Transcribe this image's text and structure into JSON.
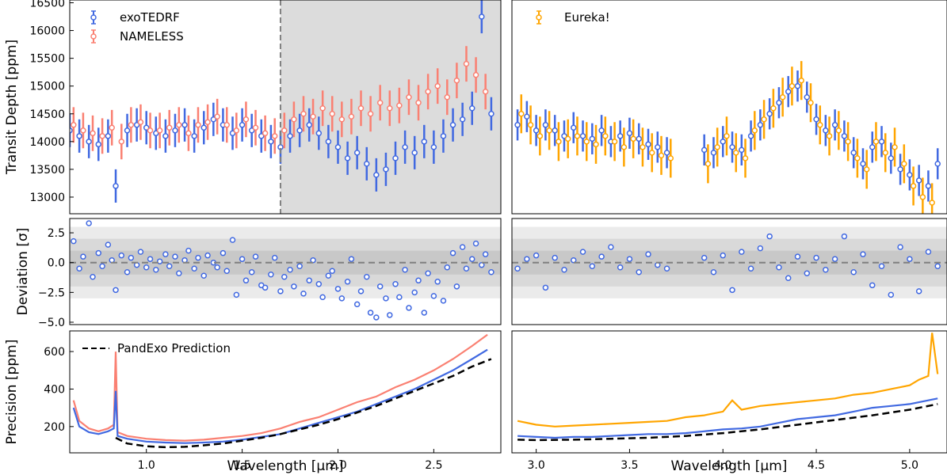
{
  "colors": {
    "exotedrf": "#4169e1",
    "nameless": "#fa8072",
    "eureka": "#ffa500",
    "pandexo": "#000000",
    "shade": "#dcdcdc",
    "band1": "#c8c8c8",
    "band2": "#d9d9d9",
    "band3": "#ebebeb",
    "reference": "#808080"
  },
  "chart_data": [
    {
      "id": "transit-niriss",
      "type": "scatter",
      "ylabel": "Transit Depth [ppm]",
      "xlim": [
        0.6,
        2.85
      ],
      "ylim": [
        12700,
        16550
      ],
      "yticks": [
        "13000",
        "13500",
        "14000",
        "14500",
        "15000",
        "15500",
        "16000",
        "16500"
      ],
      "shaded_region": [
        1.7,
        2.85
      ],
      "vline": 1.7,
      "legend": [
        "exoTEDRF",
        "NAMELESS"
      ],
      "series": [
        {
          "name": "exoTEDRF",
          "x": [
            0.6,
            0.65,
            0.7,
            0.75,
            0.8,
            0.84,
            0.9,
            0.95,
            1.0,
            1.05,
            1.1,
            1.15,
            1.2,
            1.25,
            1.3,
            1.35,
            1.4,
            1.45,
            1.5,
            1.55,
            1.6,
            1.65,
            1.7,
            1.75,
            1.8,
            1.85,
            1.9,
            1.95,
            2.0,
            2.05,
            2.1,
            2.15,
            2.2,
            2.25,
            2.3,
            2.35,
            2.4,
            2.45,
            2.5,
            2.55,
            2.6,
            2.65,
            2.7,
            2.75,
            2.8
          ],
          "y": [
            14200,
            14100,
            14000,
            13950,
            14100,
            13200,
            14200,
            14300,
            14250,
            14150,
            14100,
            14200,
            14300,
            14100,
            14250,
            14400,
            14300,
            14150,
            14300,
            14200,
            14100,
            14000,
            13900,
            14100,
            14200,
            14300,
            14150,
            14000,
            13900,
            13700,
            13800,
            13600,
            13400,
            13500,
            13700,
            13900,
            13800,
            14000,
            13900,
            14100,
            14300,
            14400,
            14600,
            16250,
            14500
          ],
          "err": 300
        },
        {
          "name": "NAMELESS",
          "x": [
            0.62,
            0.67,
            0.72,
            0.77,
            0.82,
            0.87,
            0.92,
            0.97,
            1.02,
            1.07,
            1.12,
            1.17,
            1.22,
            1.27,
            1.32,
            1.37,
            1.42,
            1.47,
            1.52,
            1.57,
            1.62,
            1.67,
            1.72,
            1.77,
            1.82,
            1.87,
            1.92,
            1.97,
            2.02,
            2.07,
            2.12,
            2.17,
            2.22,
            2.27,
            2.32,
            2.37,
            2.42,
            2.47,
            2.52,
            2.57,
            2.62,
            2.67,
            2.72,
            2.77
          ],
          "y": [
            14300,
            14200,
            14150,
            14100,
            14250,
            14000,
            14300,
            14350,
            14200,
            14200,
            14250,
            14300,
            14150,
            14300,
            14350,
            14450,
            14300,
            14200,
            14400,
            14250,
            14150,
            14100,
            14200,
            14400,
            14500,
            14450,
            14600,
            14500,
            14400,
            14450,
            14600,
            14500,
            14700,
            14600,
            14650,
            14800,
            14700,
            14900,
            15000,
            14800,
            15100,
            15400,
            15200,
            14900
          ],
          "err": 320
        }
      ]
    },
    {
      "id": "transit-nirspec",
      "type": "scatter",
      "xlim": [
        2.87,
        5.2
      ],
      "ylim": [
        12700,
        16550
      ],
      "legend": [
        "Eureka!"
      ],
      "gap": [
        3.7,
        3.85
      ],
      "series": [
        {
          "name": "exoTEDRF",
          "x": [
            2.9,
            2.95,
            3.0,
            3.05,
            3.1,
            3.15,
            3.2,
            3.25,
            3.3,
            3.35,
            3.4,
            3.45,
            3.5,
            3.55,
            3.6,
            3.65,
            3.7,
            3.9,
            3.95,
            4.0,
            4.05,
            4.1,
            4.15,
            4.2,
            4.25,
            4.3,
            4.35,
            4.4,
            4.45,
            4.5,
            4.55,
            4.6,
            4.65,
            4.7,
            4.75,
            4.8,
            4.85,
            4.9,
            4.95,
            5.0,
            5.05,
            5.1,
            5.15
          ],
          "y": [
            14300,
            14450,
            14200,
            14300,
            14200,
            14100,
            14250,
            14100,
            14050,
            14200,
            14000,
            14100,
            14150,
            14050,
            13950,
            13900,
            13800,
            13850,
            13800,
            14000,
            13900,
            13850,
            14100,
            14300,
            14500,
            14700,
            14900,
            15000,
            14800,
            14400,
            14200,
            14300,
            14100,
            13800,
            13600,
            13900,
            14000,
            13700,
            13500,
            13400,
            13300,
            13200,
            13600
          ],
          "err": 280
        },
        {
          "name": "Eureka!",
          "x": [
            2.92,
            2.97,
            3.02,
            3.07,
            3.12,
            3.17,
            3.22,
            3.27,
            3.32,
            3.37,
            3.42,
            3.47,
            3.52,
            3.57,
            3.62,
            3.67,
            3.72,
            3.92,
            3.97,
            4.02,
            4.07,
            4.12,
            4.17,
            4.22,
            4.27,
            4.32,
            4.37,
            4.42,
            4.47,
            4.52,
            4.57,
            4.62,
            4.67,
            4.72,
            4.77,
            4.82,
            4.87,
            4.92,
            4.97,
            5.02,
            5.07,
            5.12
          ],
          "y": [
            14500,
            14300,
            14100,
            14200,
            14000,
            14050,
            14100,
            14000,
            13950,
            14100,
            14000,
            13900,
            14050,
            13900,
            13800,
            13750,
            13700,
            13600,
            13900,
            14100,
            13800,
            13700,
            14200,
            14400,
            14600,
            14800,
            15000,
            15100,
            14700,
            14300,
            14100,
            14200,
            14000,
            13700,
            13500,
            14000,
            13800,
            13900,
            13600,
            13200,
            13000,
            12900
          ],
          "err": 350
        }
      ]
    },
    {
      "id": "deviation-niriss",
      "type": "scatter",
      "ylabel": "Deviation [σ]",
      "xlim": [
        0.6,
        2.85
      ],
      "ylim": [
        -5.2,
        3.7
      ],
      "yticks": [
        "−5.0",
        "−2.5",
        "0.0",
        "2.5"
      ],
      "bands": [
        1,
        2,
        3
      ],
      "series": [
        {
          "name": "exoTEDRF",
          "x": [
            0.62,
            0.65,
            0.67,
            0.7,
            0.72,
            0.75,
            0.77,
            0.8,
            0.82,
            0.84,
            0.87,
            0.9,
            0.92,
            0.95,
            0.97,
            1.0,
            1.02,
            1.05,
            1.07,
            1.1,
            1.12,
            1.15,
            1.17,
            1.2,
            1.22,
            1.25,
            1.27,
            1.3,
            1.32,
            1.35,
            1.37,
            1.4,
            1.42,
            1.45,
            1.47,
            1.5,
            1.52,
            1.55,
            1.57,
            1.6,
            1.62,
            1.65,
            1.67,
            1.7,
            1.72,
            1.75,
            1.77,
            1.8,
            1.82,
            1.85,
            1.87,
            1.9,
            1.92,
            1.95,
            1.97,
            2.0,
            2.02,
            2.05,
            2.07,
            2.1,
            2.12,
            2.15,
            2.17,
            2.2,
            2.22,
            2.25,
            2.27,
            2.3,
            2.32,
            2.35,
            2.37,
            2.4,
            2.42,
            2.45,
            2.47,
            2.5,
            2.52,
            2.55,
            2.57,
            2.6,
            2.62,
            2.65,
            2.67,
            2.7,
            2.72,
            2.75,
            2.77,
            2.8
          ],
          "y": [
            1.8,
            -0.5,
            0.5,
            3.3,
            -1.2,
            0.8,
            -0.3,
            1.5,
            0.2,
            -2.3,
            0.6,
            -0.8,
            0.4,
            -0.2,
            0.9,
            -0.4,
            0.3,
            -0.6,
            0.1,
            0.7,
            -0.3,
            0.5,
            -0.9,
            0.2,
            1.0,
            -0.5,
            0.4,
            -1.1,
            0.6,
            0.0,
            -0.4,
            0.8,
            -0.7,
            1.9,
            -2.7,
            0.3,
            -1.5,
            -0.8,
            0.5,
            -1.9,
            -2.1,
            -1.0,
            0.4,
            -2.4,
            -1.2,
            -0.6,
            -2.0,
            -0.3,
            -2.6,
            -1.5,
            0.2,
            -1.8,
            -2.9,
            -1.1,
            -0.7,
            -2.2,
            -3.0,
            -1.6,
            0.3,
            -3.5,
            -2.4,
            -1.2,
            -4.2,
            -4.6,
            -2.0,
            -3.0,
            -4.4,
            -1.8,
            -2.9,
            -0.6,
            -3.8,
            -2.5,
            -1.5,
            -4.2,
            -0.9,
            -2.8,
            -1.6,
            -3.2,
            -0.4,
            0.8,
            -2.0,
            1.3,
            -0.5,
            0.3,
            1.6,
            -0.2,
            0.7,
            -0.8
          ],
          "err": 0
        }
      ]
    },
    {
      "id": "deviation-nirspec",
      "type": "scatter",
      "xlim": [
        2.87,
        5.2
      ],
      "ylim": [
        -5.2,
        3.7
      ],
      "bands": [
        1,
        2,
        3
      ],
      "series": [
        {
          "name": "exoTEDRF",
          "x": [
            2.9,
            2.95,
            3.0,
            3.05,
            3.1,
            3.15,
            3.2,
            3.25,
            3.3,
            3.35,
            3.4,
            3.45,
            3.5,
            3.55,
            3.6,
            3.65,
            3.7,
            3.9,
            3.95,
            4.0,
            4.05,
            4.1,
            4.15,
            4.2,
            4.25,
            4.3,
            4.35,
            4.4,
            4.45,
            4.5,
            4.55,
            4.6,
            4.65,
            4.7,
            4.75,
            4.8,
            4.85,
            4.9,
            4.95,
            5.0,
            5.05,
            5.1,
            5.15
          ],
          "y": [
            -0.5,
            0.3,
            0.6,
            -2.1,
            0.4,
            -0.6,
            0.2,
            0.9,
            -0.3,
            0.5,
            1.3,
            -0.4,
            0.3,
            -0.8,
            0.7,
            -0.2,
            -0.5,
            0.4,
            -0.8,
            0.6,
            -2.3,
            0.9,
            -0.5,
            1.2,
            2.2,
            -0.4,
            -1.3,
            0.5,
            -0.9,
            0.4,
            -0.6,
            0.3,
            2.2,
            -0.8,
            0.7,
            -1.9,
            -0.3,
            -2.7,
            1.3,
            0.3,
            -2.4,
            0.9,
            -0.3
          ],
          "err": 0
        }
      ]
    },
    {
      "id": "precision-niriss",
      "type": "line",
      "ylabel": "Precision [ppm]",
      "xlabel": "Wavelength [µm]",
      "xlim": [
        0.6,
        2.85
      ],
      "ylim": [
        60,
        710
      ],
      "yticks": [
        "200",
        "400",
        "600"
      ],
      "xticks": [
        "1.0",
        "1.5",
        "2.0",
        "2.5"
      ],
      "legend": [
        "PandExo Prediction"
      ],
      "series": [
        {
          "name": "NAMELESS",
          "x": [
            0.62,
            0.65,
            0.7,
            0.75,
            0.8,
            0.83,
            0.84,
            0.85,
            0.9,
            1.0,
            1.1,
            1.2,
            1.3,
            1.4,
            1.5,
            1.6,
            1.7,
            1.8,
            1.9,
            2.0,
            2.1,
            2.2,
            2.3,
            2.4,
            2.5,
            2.6,
            2.7,
            2.78
          ],
          "y": [
            340,
            230,
            190,
            175,
            190,
            210,
            600,
            170,
            150,
            135,
            128,
            125,
            130,
            140,
            150,
            165,
            190,
            225,
            250,
            290,
            330,
            360,
            410,
            450,
            500,
            560,
            630,
            690
          ]
        },
        {
          "name": "exoTEDRF",
          "x": [
            0.62,
            0.65,
            0.7,
            0.75,
            0.8,
            0.83,
            0.84,
            0.85,
            0.9,
            1.0,
            1.1,
            1.2,
            1.3,
            1.4,
            1.5,
            1.6,
            1.7,
            1.8,
            1.9,
            2.0,
            2.1,
            2.2,
            2.3,
            2.4,
            2.5,
            2.6,
            2.7,
            2.78
          ],
          "y": [
            300,
            200,
            170,
            160,
            175,
            190,
            390,
            150,
            135,
            120,
            115,
            112,
            115,
            120,
            130,
            145,
            160,
            190,
            220,
            250,
            280,
            320,
            360,
            400,
            450,
            500,
            560,
            610
          ]
        },
        {
          "name": "PandExo Prediction",
          "x": [
            0.84,
            0.9,
            1.0,
            1.1,
            1.2,
            1.3,
            1.4,
            1.5,
            1.6,
            1.7,
            1.8,
            1.9,
            2.0,
            2.1,
            2.2,
            2.3,
            2.4,
            2.5,
            2.6,
            2.7,
            2.8
          ],
          "y": [
            140,
            110,
            95,
            90,
            92,
            100,
            110,
            125,
            140,
            160,
            185,
            210,
            240,
            275,
            310,
            350,
            390,
            430,
            470,
            520,
            560
          ]
        }
      ]
    },
    {
      "id": "precision-nirspec",
      "type": "line",
      "xlabel": "Wavelength [µm]",
      "xlim": [
        2.87,
        5.2
      ],
      "ylim": [
        60,
        710
      ],
      "xticks": [
        "3.0",
        "3.5",
        "4.0",
        "4.5",
        "5.0"
      ],
      "series": [
        {
          "name": "Eureka!",
          "x": [
            2.9,
            3.0,
            3.1,
            3.2,
            3.3,
            3.4,
            3.5,
            3.6,
            3.7,
            3.8,
            3.9,
            4.0,
            4.05,
            4.1,
            4.2,
            4.3,
            4.4,
            4.5,
            4.6,
            4.7,
            4.8,
            4.9,
            5.0,
            5.05,
            5.1,
            5.12,
            5.15
          ],
          "y": [
            230,
            210,
            200,
            205,
            210,
            215,
            220,
            225,
            230,
            250,
            260,
            280,
            340,
            290,
            310,
            320,
            330,
            340,
            350,
            370,
            380,
            400,
            420,
            450,
            470,
            700,
            480
          ]
        },
        {
          "name": "exoTEDRF",
          "x": [
            2.9,
            3.0,
            3.1,
            3.2,
            3.3,
            3.4,
            3.5,
            3.6,
            3.7,
            3.8,
            3.9,
            4.0,
            4.1,
            4.2,
            4.3,
            4.4,
            4.5,
            4.6,
            4.7,
            4.8,
            4.9,
            5.0,
            5.1,
            5.15
          ],
          "y": [
            150,
            145,
            140,
            145,
            145,
            150,
            155,
            160,
            160,
            165,
            175,
            185,
            190,
            200,
            220,
            240,
            250,
            260,
            280,
            300,
            310,
            320,
            340,
            350
          ]
        },
        {
          "name": "PandExo Prediction",
          "x": [
            2.9,
            3.0,
            3.2,
            3.4,
            3.6,
            3.8,
            4.0,
            4.2,
            4.4,
            4.6,
            4.8,
            5.0,
            5.15
          ],
          "y": [
            130,
            128,
            130,
            135,
            140,
            150,
            165,
            185,
            210,
            235,
            260,
            290,
            320
          ]
        }
      ]
    }
  ]
}
